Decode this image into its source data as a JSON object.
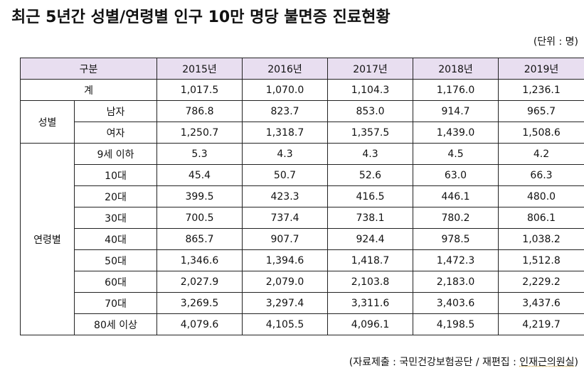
{
  "title": "최근 5년간 성별/연령별 인구 10만 명당 불면증 진료현황",
  "unit": "(단위 : 명)",
  "header": {
    "category": "구분",
    "years": [
      "2015년",
      "2016년",
      "2017년",
      "2018년",
      "2019년"
    ]
  },
  "header_color": "#E8DEF0",
  "total": {
    "label": "계",
    "values": [
      "1,017.5",
      "1,070.0",
      "1,104.3",
      "1,176.0",
      "1,236.1"
    ]
  },
  "gender": {
    "group": "성별",
    "rows": [
      {
        "label": "남자",
        "values": [
          "786.8",
          "823.7",
          "853.0",
          "914.7",
          "965.7"
        ]
      },
      {
        "label": "여자",
        "values": [
          "1,250.7",
          "1,318.7",
          "1,357.5",
          "1,439.0",
          "1,508.6"
        ]
      }
    ]
  },
  "age": {
    "group": "연령별",
    "rows": [
      {
        "label": "9세 이하",
        "values": [
          "5.3",
          "4.3",
          "4.3",
          "4.5",
          "4.2"
        ]
      },
      {
        "label": "10대",
        "values": [
          "45.4",
          "50.7",
          "52.6",
          "63.0",
          "66.3"
        ]
      },
      {
        "label": "20대",
        "values": [
          "399.5",
          "423.3",
          "416.5",
          "446.1",
          "480.0"
        ]
      },
      {
        "label": "30대",
        "values": [
          "700.5",
          "737.4",
          "738.1",
          "780.2",
          "806.1"
        ]
      },
      {
        "label": "40대",
        "values": [
          "865.7",
          "907.7",
          "924.4",
          "978.5",
          "1,038.2"
        ]
      },
      {
        "label": "50대",
        "values": [
          "1,346.6",
          "1,394.6",
          "1,418.7",
          "1,472.3",
          "1,512.8"
        ]
      },
      {
        "label": "60대",
        "values": [
          "2,027.9",
          "2,079.0",
          "2,103.8",
          "2,183.0",
          "2,229.2"
        ]
      },
      {
        "label": "70대",
        "values": [
          "3,269.5",
          "3,297.4",
          "3,311.6",
          "3,403.6",
          "3,437.6"
        ]
      },
      {
        "label": "80세 이상",
        "values": [
          "4,079.6",
          "4,105.5",
          "4,096.1",
          "4,198.5",
          "4,219.7"
        ]
      }
    ]
  },
  "footer": {
    "prefix": "(자료제출 : 국민건강보험공단 / 재편집 : ",
    "office": "인재근의원실",
    "suffix": ")"
  }
}
